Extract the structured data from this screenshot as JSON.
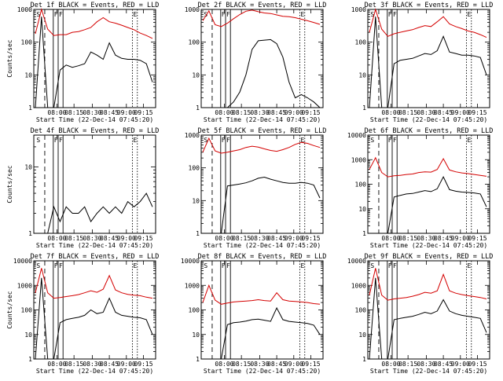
{
  "chart_data": [
    {
      "type": "line",
      "title": "Det 1f BLACK = Events, RED = LLD",
      "ylabel": "Counts/sec",
      "xlabel": "Start Time (22-Dec-14 07:45:20)",
      "x_ticks": [
        "08:00",
        "08:15",
        "08:30",
        "08:45",
        "09:00",
        "09:15"
      ],
      "y_ticks": [
        "1",
        "10",
        "100",
        "1000"
      ],
      "ylim": [
        1,
        1000
      ],
      "yscale": "log",
      "markers": [
        "S",
        "F",
        "F",
        "E"
      ],
      "series": [
        {
          "color": "#d40000",
          "values": [
            180,
            1000,
            250,
            160,
            170,
            170,
            200,
            210,
            240,
            280,
            420,
            560,
            420,
            380,
            330,
            280,
            240,
            190,
            160,
            130
          ]
        },
        {
          "color": "#000000",
          "values": [
            1,
            600,
            1,
            1,
            14,
            20,
            17,
            19,
            22,
            50,
            40,
            30,
            95,
            40,
            32,
            30,
            30,
            28,
            22,
            6
          ]
        }
      ]
    },
    {
      "type": "line",
      "title": "Det 2f BLACK = Events, RED = LLD",
      "ylabel": "",
      "xlabel": "Start Time (22-Dec-14 07:45:20)",
      "x_ticks": [
        "08:00",
        "08:15",
        "08:30",
        "08:45",
        "09:00",
        "09:15"
      ],
      "y_ticks": [
        "1",
        "10",
        "100",
        "1000"
      ],
      "ylim": [
        1,
        1000
      ],
      "yscale": "log",
      "markers": [
        "S",
        "F",
        "F",
        "E"
      ],
      "series": [
        {
          "color": "#d40000",
          "values": [
            450,
            900,
            340,
            300,
            380,
            520,
            700,
            880,
            950,
            850,
            780,
            750,
            680,
            620,
            600,
            560,
            500,
            450,
            400,
            350
          ]
        },
        {
          "color": "#000000",
          "values": [
            1,
            1,
            1,
            1,
            1,
            1.5,
            3,
            10,
            60,
            110,
            115,
            120,
            90,
            35,
            6,
            2,
            2.5,
            2,
            1.5,
            1
          ]
        }
      ]
    },
    {
      "type": "line",
      "title": "Det 3f BLACK = Events, RED = LLD",
      "ylabel": "",
      "xlabel": "Start Time (22-Dec-14 07:45:20)",
      "x_ticks": [
        "08:00",
        "08:15",
        "08:30",
        "08:45",
        "09:00",
        "09:15"
      ],
      "y_ticks": [
        "1",
        "10",
        "100",
        "1000"
      ],
      "ylim": [
        1,
        1000
      ],
      "yscale": "log",
      "markers": [
        "S",
        "F",
        "F",
        "E"
      ],
      "series": [
        {
          "color": "#d40000",
          "values": [
            200,
            1000,
            250,
            150,
            180,
            200,
            220,
            240,
            280,
            320,
            300,
            420,
            600,
            360,
            300,
            260,
            220,
            200,
            170,
            140
          ]
        },
        {
          "color": "#000000",
          "values": [
            1,
            600,
            1,
            1,
            22,
            28,
            30,
            32,
            38,
            45,
            42,
            55,
            150,
            50,
            45,
            40,
            40,
            38,
            34,
            10
          ]
        }
      ]
    },
    {
      "type": "line",
      "title": "Det 4f BLACK = Events, RED = LLD",
      "ylabel": "Counts/sec",
      "xlabel": "Start Time (22-Dec-14 07:45:20)",
      "x_ticks": [
        "08:00",
        "08:15",
        "08:30",
        "08:45",
        "09:00",
        "09:15"
      ],
      "y_ticks": [
        "1",
        "10"
      ],
      "ylim": [
        1,
        30
      ],
      "yscale": "log",
      "markers": [
        "S",
        "F",
        "F",
        "E"
      ],
      "series": [
        {
          "color": "#000000",
          "values": [
            1,
            1,
            1,
            2.5,
            1.5,
            2.5,
            2,
            2,
            2.5,
            1.5,
            2,
            2.5,
            2,
            2.5,
            2,
            3,
            2.5,
            3,
            4,
            2.5
          ]
        }
      ]
    },
    {
      "type": "line",
      "title": "Det 5f BLACK = Events, RED = LLD",
      "ylabel": "",
      "xlabel": "Start Time (22-Dec-14 07:45:20)",
      "x_ticks": [
        "08:00",
        "08:15",
        "08:30",
        "08:45",
        "09:00",
        "09:15"
      ],
      "y_ticks": [
        "1",
        "10",
        "100",
        "1000"
      ],
      "ylim": [
        1,
        1000
      ],
      "yscale": "log",
      "markers": [
        "S",
        "F",
        "F",
        "E"
      ],
      "series": [
        {
          "color": "#d40000",
          "values": [
            300,
            800,
            330,
            280,
            300,
            330,
            360,
            420,
            460,
            430,
            380,
            340,
            320,
            360,
            420,
            520,
            600,
            560,
            480,
            420
          ]
        },
        {
          "color": "#000000",
          "values": [
            1,
            1,
            1,
            1,
            28,
            30,
            32,
            35,
            40,
            48,
            52,
            45,
            40,
            36,
            34,
            34,
            36,
            34,
            30,
            12
          ]
        }
      ]
    },
    {
      "type": "line",
      "title": "Det 6f BLACK = Events, RED = LLD",
      "ylabel": "",
      "xlabel": "Start Time (22-Dec-14 07:45:20)",
      "x_ticks": [
        "08:00",
        "08:15",
        "08:30",
        "08:45",
        "09:00",
        "09:15"
      ],
      "y_ticks": [
        "1",
        "10",
        "100",
        "1000",
        "10000"
      ],
      "ylim": [
        1,
        10000
      ],
      "yscale": "log",
      "markers": [
        "S",
        "F",
        "F",
        "E"
      ],
      "series": [
        {
          "color": "#d40000",
          "values": [
            400,
            1200,
            300,
            200,
            220,
            230,
            250,
            260,
            300,
            320,
            310,
            400,
            1100,
            380,
            320,
            290,
            270,
            250,
            230,
            210
          ]
        },
        {
          "color": "#000000",
          "values": [
            1,
            1,
            1,
            1,
            30,
            35,
            40,
            42,
            48,
            55,
            50,
            65,
            200,
            60,
            52,
            48,
            46,
            44,
            40,
            12
          ]
        }
      ]
    },
    {
      "type": "line",
      "title": "Det 7f BLACK = Events, RED = LLD",
      "ylabel": "Counts/sec",
      "xlabel": "Start Time (22-Dec-14 07:45:20)",
      "x_ticks": [
        "08:00",
        "08:15",
        "08:30",
        "08:45",
        "09:00",
        "09:15"
      ],
      "y_ticks": [
        "1",
        "10",
        "100",
        "1000",
        "10000"
      ],
      "ylim": [
        1,
        10000
      ],
      "yscale": "log",
      "markers": [
        "S",
        "F",
        "F",
        "E"
      ],
      "series": [
        {
          "color": "#d40000",
          "values": [
            500,
            5000,
            500,
            300,
            320,
            350,
            380,
            420,
            500,
            600,
            520,
            700,
            2500,
            650,
            500,
            430,
            400,
            380,
            330,
            300
          ]
        },
        {
          "color": "#000000",
          "values": [
            1,
            2000,
            1,
            1,
            30,
            40,
            45,
            50,
            60,
            100,
            70,
            80,
            300,
            80,
            60,
            55,
            50,
            48,
            40,
            10
          ]
        }
      ]
    },
    {
      "type": "line",
      "title": "Det 8f BLACK = Events, RED = LLD",
      "ylabel": "",
      "xlabel": "Start Time (22-Dec-14 07:45:20)",
      "x_ticks": [
        "08:00",
        "08:15",
        "08:30",
        "08:45",
        "09:00",
        "09:15"
      ],
      "y_ticks": [
        "1",
        "10",
        "100",
        "1000",
        "10000"
      ],
      "ylim": [
        1,
        10000
      ],
      "yscale": "log",
      "markers": [
        "S",
        "F",
        "F",
        "E"
      ],
      "series": [
        {
          "color": "#d40000",
          "values": [
            200,
            1000,
            250,
            170,
            190,
            210,
            220,
            230,
            240,
            260,
            240,
            230,
            500,
            260,
            230,
            220,
            210,
            200,
            180,
            170
          ]
        },
        {
          "color": "#000000",
          "values": [
            1,
            1,
            1,
            1,
            25,
            30,
            32,
            35,
            40,
            42,
            38,
            34,
            120,
            40,
            34,
            32,
            30,
            28,
            24,
            10
          ]
        }
      ]
    },
    {
      "type": "line",
      "title": "Det 9f BLACK = Events, RED = LLD",
      "ylabel": "",
      "xlabel": "Start Time (22-Dec-14 07:45:20)",
      "x_ticks": [
        "08:00",
        "08:15",
        "08:30",
        "08:45",
        "09:00",
        "09:15"
      ],
      "y_ticks": [
        "1",
        "10",
        "100",
        "1000",
        "10000"
      ],
      "ylim": [
        1,
        10000
      ],
      "yscale": "log",
      "markers": [
        "S",
        "F",
        "F",
        "E"
      ],
      "series": [
        {
          "color": "#d40000",
          "values": [
            400,
            5000,
            400,
            250,
            280,
            300,
            320,
            360,
            420,
            520,
            480,
            600,
            2800,
            600,
            480,
            420,
            380,
            350,
            320,
            280
          ]
        },
        {
          "color": "#000000",
          "values": [
            1,
            2000,
            1,
            1,
            40,
            45,
            50,
            55,
            65,
            80,
            70,
            90,
            260,
            90,
            70,
            60,
            55,
            50,
            45,
            12
          ]
        }
      ]
    }
  ]
}
